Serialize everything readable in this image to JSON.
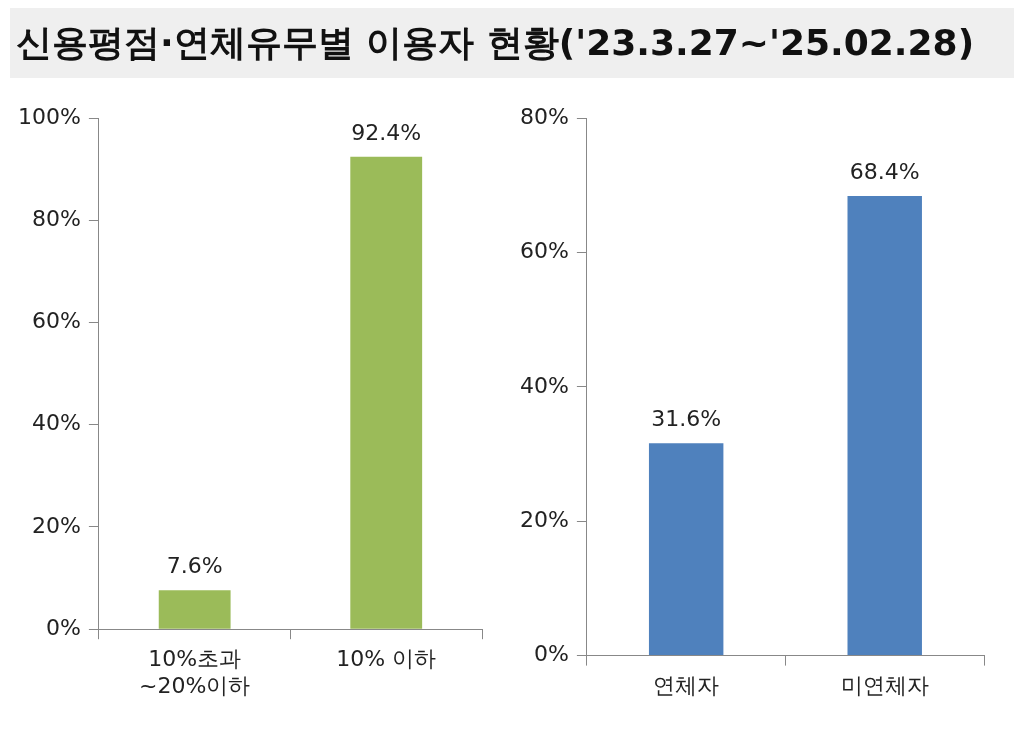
{
  "chart_data": [
    {
      "type": "bar",
      "title": "신용평점·연체유무별 이용자 현황('23.3.27~'25.02.28)",
      "categories": [
        "10%초과\n~20%이하",
        "10% 이하"
      ],
      "values": [
        7.6,
        92.4
      ],
      "color": "#9bbb59",
      "value_labels": [
        "7.6%",
        "92.4%"
      ],
      "ylim": [
        0,
        100
      ],
      "yticks": [
        {
          "value": 0,
          "label": "0%"
        },
        {
          "value": 20,
          "label": "20%"
        },
        {
          "value": 40,
          "label": "40%"
        },
        {
          "value": 60,
          "label": "60%"
        },
        {
          "value": 80,
          "label": "80%"
        },
        {
          "value": 100,
          "label": "100%"
        }
      ],
      "grid": false,
      "legend": false
    },
    {
      "type": "bar",
      "categories": [
        "연체자",
        "미연체자"
      ],
      "values": [
        31.6,
        68.4
      ],
      "color": "#4f81bd",
      "value_labels": [
        "31.6%",
        "68.4%"
      ],
      "ylim": [
        0,
        80
      ],
      "yticks": [
        {
          "value": 0,
          "label": "0%"
        },
        {
          "value": 20,
          "label": "20%"
        },
        {
          "value": 40,
          "label": "40%"
        },
        {
          "value": 60,
          "label": "60%"
        },
        {
          "value": 80,
          "label": "80%"
        }
      ],
      "grid": false,
      "legend": false
    }
  ]
}
